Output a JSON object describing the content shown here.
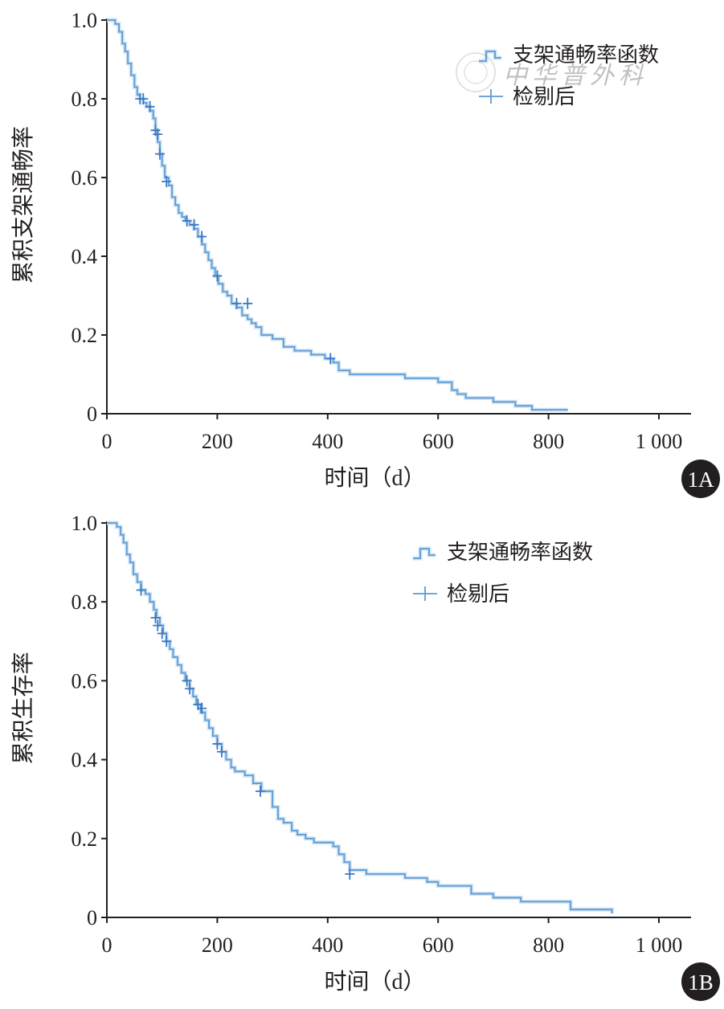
{
  "chart_data": [
    {
      "panel": "1A",
      "type": "line",
      "step": true,
      "xlabel": "时间（d）",
      "ylabel": "累积支架通畅率",
      "xlim": [
        0,
        1000
      ],
      "ylim": [
        0,
        1.0
      ],
      "x_ticks": [
        0,
        200,
        400,
        600,
        800,
        1000
      ],
      "x_tick_labels": [
        "0",
        "200",
        "400",
        "600",
        "800",
        "1 000"
      ],
      "y_ticks": [
        0,
        0.2,
        0.4,
        0.6,
        0.8,
        1.0
      ],
      "y_tick_labels": [
        "0",
        "0.2",
        "0.4",
        "0.6",
        "0.8",
        "1.0"
      ],
      "grid": false,
      "legend_position": "top-right",
      "legend": [
        "支架通畅率函数",
        "检剔后"
      ],
      "color": "#5b9bd5",
      "series": [
        {
          "name": "支架通畅率函数",
          "x": [
            0,
            15,
            22,
            28,
            33,
            38,
            44,
            50,
            55,
            60,
            66,
            72,
            78,
            84,
            88,
            92,
            96,
            100,
            105,
            112,
            118,
            124,
            130,
            136,
            142,
            150,
            158,
            165,
            172,
            178,
            184,
            190,
            196,
            202,
            210,
            218,
            226,
            235,
            245,
            255,
            262,
            270,
            280,
            300,
            320,
            340,
            370,
            395,
            410,
            420,
            440,
            480,
            540,
            570,
            600,
            625,
            635,
            650,
            700,
            740,
            770,
            835
          ],
          "y": [
            1.0,
            0.99,
            0.97,
            0.94,
            0.92,
            0.89,
            0.86,
            0.83,
            0.81,
            0.8,
            0.79,
            0.78,
            0.77,
            0.75,
            0.72,
            0.69,
            0.66,
            0.63,
            0.6,
            0.58,
            0.55,
            0.53,
            0.51,
            0.5,
            0.49,
            0.48,
            0.47,
            0.45,
            0.43,
            0.41,
            0.39,
            0.37,
            0.35,
            0.33,
            0.31,
            0.3,
            0.28,
            0.27,
            0.25,
            0.24,
            0.23,
            0.22,
            0.2,
            0.19,
            0.17,
            0.16,
            0.15,
            0.14,
            0.13,
            0.11,
            0.1,
            0.1,
            0.09,
            0.09,
            0.08,
            0.06,
            0.05,
            0.04,
            0.03,
            0.02,
            0.01,
            0.01
          ]
        },
        {
          "name": "检剔后",
          "x": [
            60,
            66,
            78,
            88,
            92,
            96,
            108,
            145,
            158,
            172,
            200,
            235,
            255,
            405
          ],
          "y": [
            0.8,
            0.8,
            0.78,
            0.72,
            0.71,
            0.66,
            0.59,
            0.49,
            0.48,
            0.45,
            0.35,
            0.28,
            0.28,
            0.14
          ]
        }
      ]
    },
    {
      "panel": "1B",
      "type": "line",
      "step": true,
      "xlabel": "时间（d）",
      "ylabel": "累积生存率",
      "xlim": [
        0,
        1000
      ],
      "ylim": [
        0,
        1.0
      ],
      "x_ticks": [
        0,
        200,
        400,
        600,
        800,
        1000
      ],
      "x_tick_labels": [
        "0",
        "200",
        "400",
        "600",
        "800",
        "1 000"
      ],
      "y_ticks": [
        0,
        0.2,
        0.4,
        0.6,
        0.8,
        1.0
      ],
      "y_tick_labels": [
        "0",
        "0.2",
        "0.4",
        "0.6",
        "0.8",
        "1.0"
      ],
      "grid": false,
      "legend_position": "top-right",
      "legend": [
        "支架通畅率函数",
        "检剔后"
      ],
      "color": "#5b9bd5",
      "series": [
        {
          "name": "支架通畅率函数",
          "x": [
            0,
            18,
            25,
            30,
            36,
            42,
            48,
            55,
            62,
            70,
            78,
            85,
            90,
            96,
            102,
            108,
            114,
            120,
            128,
            135,
            142,
            150,
            156,
            162,
            170,
            178,
            185,
            192,
            200,
            208,
            216,
            225,
            232,
            250,
            265,
            280,
            300,
            310,
            320,
            335,
            345,
            360,
            375,
            400,
            410,
            420,
            430,
            440,
            470,
            540,
            580,
            600,
            660,
            700,
            750,
            840,
            915
          ],
          "y": [
            1.0,
            0.99,
            0.97,
            0.95,
            0.92,
            0.9,
            0.87,
            0.85,
            0.83,
            0.82,
            0.8,
            0.78,
            0.76,
            0.74,
            0.72,
            0.7,
            0.68,
            0.66,
            0.64,
            0.62,
            0.6,
            0.58,
            0.56,
            0.54,
            0.52,
            0.5,
            0.48,
            0.46,
            0.44,
            0.42,
            0.4,
            0.38,
            0.37,
            0.36,
            0.34,
            0.32,
            0.28,
            0.25,
            0.24,
            0.22,
            0.21,
            0.2,
            0.19,
            0.19,
            0.18,
            0.16,
            0.14,
            0.12,
            0.11,
            0.1,
            0.09,
            0.08,
            0.06,
            0.05,
            0.04,
            0.02,
            0.01
          ]
        },
        {
          "name": "检剔后",
          "x": [
            62,
            88,
            92,
            100,
            108,
            145,
            150,
            165,
            172,
            200,
            208,
            278,
            440
          ],
          "y": [
            0.83,
            0.76,
            0.74,
            0.72,
            0.7,
            0.6,
            0.58,
            0.54,
            0.53,
            0.44,
            0.42,
            0.32,
            0.11
          ]
        }
      ]
    }
  ],
  "panel_tags": [
    "1A",
    "1B"
  ],
  "watermark": "中华普外科"
}
